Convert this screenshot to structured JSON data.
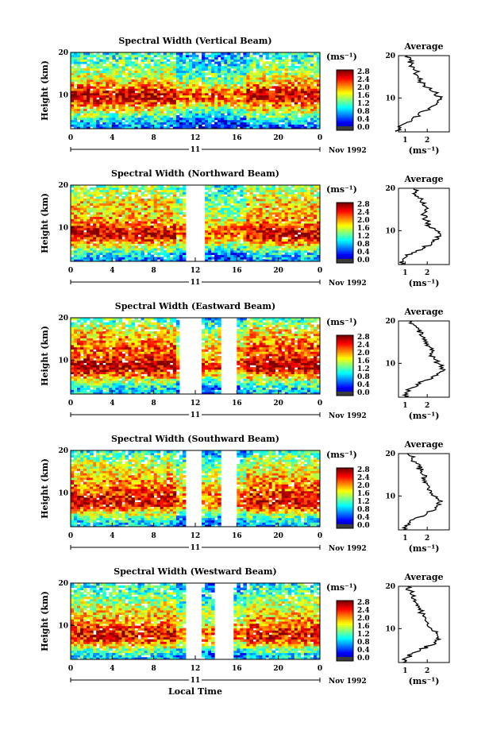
{
  "chart_data": [
    {
      "type": "heatmap",
      "title": "Spectral Width (Vertical Beam)",
      "ylabel": "Height (km)",
      "xlim": [
        0,
        24
      ],
      "ylim": [
        2,
        20
      ],
      "xticks": [
        "0",
        "4",
        "8",
        "12",
        "16",
        "20",
        "0"
      ],
      "yticks": [
        "20",
        "10"
      ],
      "date_day": "11",
      "date_label": "Nov 1992",
      "colorbar": {
        "unit": "(ms⁻¹)",
        "ticks": [
          "2.8",
          "2.4",
          "2.0",
          "1.6",
          "1.2",
          "0.8",
          "0.4",
          "0.0"
        ]
      },
      "gap_hours": [],
      "profile": {
        "title": "Average",
        "xticks": [
          "1",
          "2"
        ],
        "xlabel": "(ms⁻¹)",
        "yticks": [
          "20",
          "10"
        ],
        "height_km": [
          2,
          3,
          4,
          5,
          6,
          7,
          8,
          9,
          10,
          11,
          12,
          13,
          14,
          15,
          16,
          17,
          18,
          19,
          20
        ],
        "width_ms": [
          0.6,
          0.8,
          1.0,
          1.3,
          1.6,
          1.9,
          2.2,
          2.5,
          2.6,
          2.4,
          2.1,
          1.9,
          1.7,
          1.6,
          1.5,
          1.4,
          1.3,
          1.2,
          1.1
        ]
      }
    },
    {
      "type": "heatmap",
      "title": "Spectral Width (Northward Beam)",
      "ylabel": "Height (km)",
      "xlim": [
        0,
        24
      ],
      "ylim": [
        2,
        20
      ],
      "xticks": [
        "0",
        "4",
        "8",
        "12",
        "16",
        "20",
        "0"
      ],
      "yticks": [
        "20",
        "10"
      ],
      "date_day": "11",
      "date_label": "Nov 1992",
      "colorbar": {
        "unit": "(ms⁻¹)",
        "ticks": [
          "2.8",
          "2.4",
          "2.0",
          "1.6",
          "1.2",
          "0.8",
          "0.4",
          "0.0"
        ]
      },
      "gap_hours": [
        [
          11.1,
          12.8
        ]
      ],
      "profile": {
        "title": "Average",
        "xticks": [
          "1",
          "2"
        ],
        "xlabel": "(ms⁻¹)",
        "yticks": [
          "20",
          "10"
        ],
        "height_km": [
          2,
          3,
          4,
          5,
          6,
          7,
          8,
          9,
          10,
          11,
          12,
          13,
          14,
          15,
          16,
          17,
          18,
          19,
          20
        ],
        "width_ms": [
          0.8,
          0.9,
          1.1,
          1.5,
          1.9,
          2.2,
          2.5,
          2.6,
          2.4,
          2.1,
          2.0,
          1.9,
          1.8,
          1.9,
          1.8,
          1.7,
          1.6,
          1.5,
          1.4
        ]
      }
    },
    {
      "type": "heatmap",
      "title": "Spectral Width (Eastward Beam)",
      "ylabel": "Height (km)",
      "xlim": [
        0,
        24
      ],
      "ylim": [
        2,
        20
      ],
      "xticks": [
        "0",
        "4",
        "8",
        "12",
        "16",
        "20",
        "0"
      ],
      "yticks": [
        "20",
        "10"
      ],
      "date_day": "11",
      "date_label": "Nov 1992",
      "colorbar": {
        "unit": "(ms⁻¹)",
        "ticks": [
          "2.8",
          "2.4",
          "2.0",
          "1.6",
          "1.2",
          "0.8",
          "0.4",
          "0.0"
        ]
      },
      "gap_hours": [
        [
          10.6,
          12.7
        ],
        [
          14.6,
          15.9
        ]
      ],
      "profile": {
        "title": "Average",
        "xticks": [
          "1",
          "2"
        ],
        "xlabel": "(ms⁻¹)",
        "yticks": [
          "20",
          "10"
        ],
        "height_km": [
          2,
          3,
          4,
          5,
          6,
          7,
          8,
          9,
          10,
          11,
          12,
          13,
          14,
          15,
          16,
          17,
          18,
          19,
          20
        ],
        "width_ms": [
          1.0,
          1.0,
          1.2,
          1.5,
          1.9,
          2.3,
          2.6,
          2.7,
          2.5,
          2.3,
          2.2,
          2.3,
          2.1,
          2.0,
          1.9,
          1.8,
          1.6,
          1.4,
          1.2
        ]
      }
    },
    {
      "type": "heatmap",
      "title": "Spectral Width (Southward Beam)",
      "ylabel": "Height (km)",
      "xlim": [
        0,
        24
      ],
      "ylim": [
        2,
        20
      ],
      "xticks": [
        "0",
        "4",
        "8",
        "12",
        "16",
        "20",
        "0"
      ],
      "yticks": [
        "20",
        "10"
      ],
      "date_day": "11",
      "date_label": "Nov 1992",
      "colorbar": {
        "unit": "(ms⁻¹)",
        "ticks": [
          "2.8",
          "2.4",
          "2.0",
          "1.6",
          "1.2",
          "0.8",
          "0.4",
          "0.0"
        ]
      },
      "gap_hours": [
        [
          11.1,
          12.6
        ],
        [
          14.5,
          16.0
        ]
      ],
      "profile": {
        "title": "Average",
        "xticks": [
          "1",
          "2"
        ],
        "xlabel": "(ms⁻¹)",
        "yticks": [
          "20",
          "10"
        ],
        "height_km": [
          2,
          3,
          4,
          5,
          6,
          7,
          8,
          9,
          10,
          11,
          12,
          13,
          14,
          15,
          16,
          17,
          18,
          19,
          20
        ],
        "width_ms": [
          0.9,
          1.0,
          1.2,
          1.6,
          2.0,
          2.4,
          2.6,
          2.5,
          2.3,
          2.2,
          2.1,
          2.0,
          1.9,
          1.8,
          1.7,
          1.6,
          1.5,
          1.3,
          1.1
        ]
      }
    },
    {
      "type": "heatmap",
      "title": "Spectral Width (Westward Beam)",
      "ylabel": "Height (km)",
      "xlabel": "Local Time",
      "xlim": [
        0,
        24
      ],
      "ylim": [
        2,
        20
      ],
      "xticks": [
        "0",
        "4",
        "8",
        "12",
        "16",
        "20",
        "0"
      ],
      "yticks": [
        "20",
        "10"
      ],
      "date_day": "11",
      "date_label": "Nov 1992",
      "colorbar": {
        "unit": "(ms⁻¹)",
        "ticks": [
          "2.8",
          "2.4",
          "2.0",
          "1.6",
          "1.2",
          "0.8",
          "0.4",
          "0.0"
        ]
      },
      "gap_hours": [
        [
          11.0,
          12.6
        ],
        [
          13.8,
          15.7
        ]
      ],
      "profile": {
        "title": "Average",
        "xticks": [
          "1",
          "2"
        ],
        "xlabel": "(ms⁻¹)",
        "yticks": [
          "20",
          "10"
        ],
        "height_km": [
          2,
          3,
          4,
          5,
          6,
          7,
          8,
          9,
          10,
          11,
          12,
          13,
          14,
          15,
          16,
          17,
          18,
          19,
          20
        ],
        "width_ms": [
          0.9,
          1.0,
          1.3,
          1.7,
          2.1,
          2.4,
          2.5,
          2.4,
          2.2,
          2.0,
          1.9,
          1.8,
          1.7,
          1.6,
          1.5,
          1.4,
          1.3,
          1.2,
          1.1
        ]
      }
    }
  ]
}
